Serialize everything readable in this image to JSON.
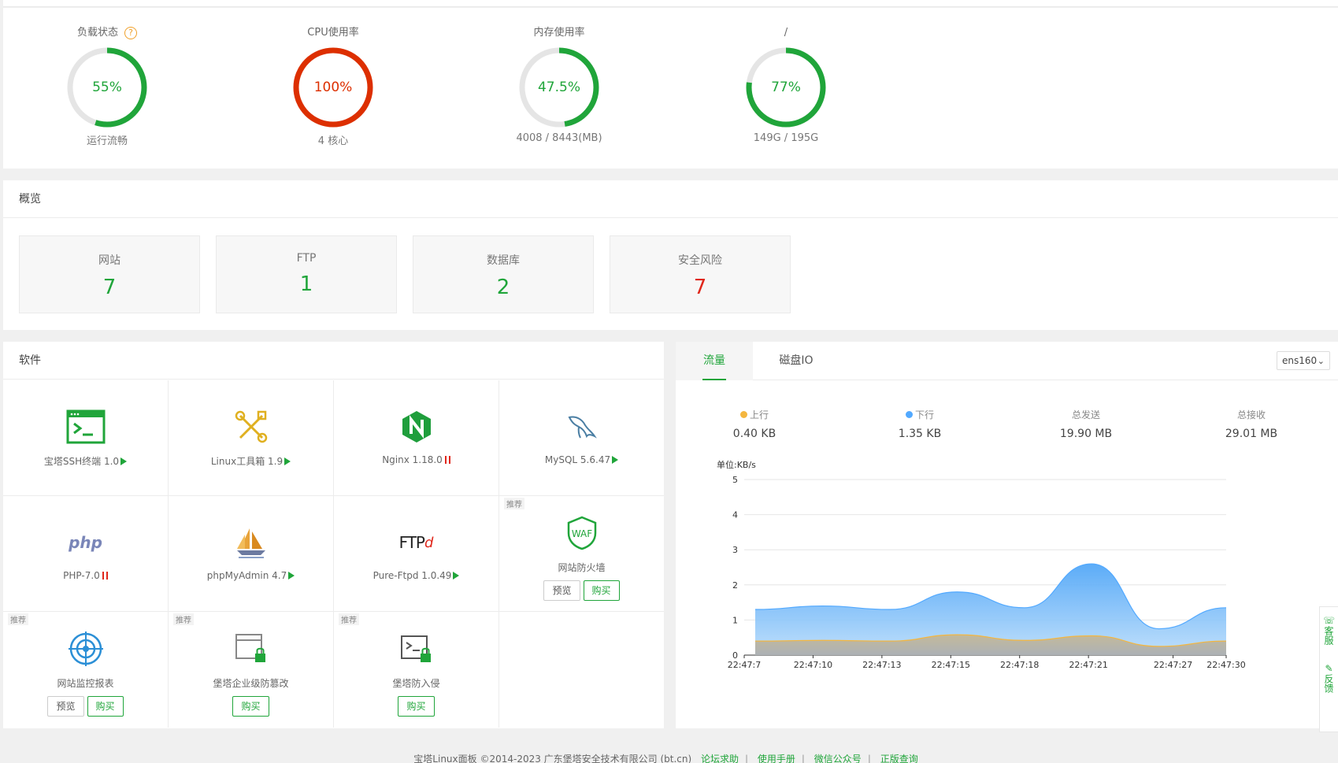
{
  "status": {
    "gauges": [
      {
        "title": "负载状态",
        "percent": 55,
        "value_text": "55%",
        "sub": "运行流畅",
        "color": "#20a53a"
      },
      {
        "title": "CPU使用率",
        "percent": 100,
        "value_text": "100%",
        "sub": "4 核心",
        "color": "#dd2f00"
      },
      {
        "title": "内存使用率",
        "percent": 47.5,
        "value_text": "47.5%",
        "sub": "4008 / 8443(MB)",
        "color": "#20a53a"
      },
      {
        "title": "/",
        "percent": 77,
        "value_text": "77%",
        "sub": "149G / 195G",
        "color": "#20a53a"
      }
    ],
    "help_symbol": "?"
  },
  "overview": {
    "title": "概览",
    "cards": [
      {
        "label": "网站",
        "value": "7"
      },
      {
        "label": "FTP",
        "value": "1"
      },
      {
        "label": "数据库",
        "value": "2"
      },
      {
        "label": "安全风险",
        "value": "7"
      }
    ]
  },
  "software": {
    "title": "软件",
    "recommend_tag": "推荐",
    "preview_label": "预览",
    "buy_label": "购买",
    "items": [
      {
        "name": "宝塔SSH终端 1.0",
        "icon": "terminal-icon",
        "status": "running"
      },
      {
        "name": "Linux工具箱 1.9",
        "icon": "toolbox-icon",
        "status": "running"
      },
      {
        "name": "Nginx 1.18.0",
        "icon": "nginx-icon",
        "status": "stopped"
      },
      {
        "name": "MySQL 5.6.47",
        "icon": "mysql-dolphin-icon",
        "status": "running"
      },
      {
        "name": "PHP-7.0",
        "icon": "php-icon",
        "status": "stopped",
        "icon_text": "php"
      },
      {
        "name": "phpMyAdmin 4.7",
        "icon": "sailboat-icon",
        "status": "running"
      },
      {
        "name": "Pure-Ftpd 1.0.49",
        "icon": "ftp-icon",
        "status": "running",
        "icon_text": "FTP"
      },
      {
        "name": "网站防火墙",
        "icon": "waf-shield-icon",
        "icon_text": "WAF"
      },
      {
        "name": "网站监控报表",
        "icon": "monitor-target-icon"
      },
      {
        "name": "堡塔企业级防篡改",
        "icon": "tamper-lock-icon"
      },
      {
        "name": "堡塔防入侵",
        "icon": "intrusion-terminal-lock-icon"
      }
    ]
  },
  "traffic": {
    "tabs": [
      "流量",
      "磁盘IO"
    ],
    "interface": "ens160",
    "stats": [
      {
        "label": "上行",
        "value": "0.40 KB",
        "dot": "#f4b63f"
      },
      {
        "label": "下行",
        "value": "1.35 KB",
        "dot": "#52a9ff"
      },
      {
        "label": "总发送",
        "value": "19.90 MB"
      },
      {
        "label": "总接收",
        "value": "29.01 MB"
      }
    ]
  },
  "chart_data": {
    "type": "area",
    "ylabel": "单位:KB/s",
    "ylim": [
      0,
      5
    ],
    "yticks": [
      "0",
      "1",
      "2",
      "3",
      "4",
      "5"
    ],
    "x": [
      "22:47:7",
      "22:47:10",
      "22:47:13",
      "22:47:15",
      "22:47:18",
      "22:47:21",
      "22:47:27",
      "22:47:30"
    ],
    "series": [
      {
        "name": "下行",
        "color": "#52a9ff",
        "values": [
          1.3,
          1.4,
          1.3,
          1.8,
          1.35,
          2.6,
          0.75,
          1.35
        ]
      },
      {
        "name": "上行",
        "color": "#f4b63f",
        "values": [
          0.4,
          0.42,
          0.4,
          0.58,
          0.42,
          0.55,
          0.25,
          0.4
        ]
      }
    ]
  },
  "side_float": [
    "客服",
    "反馈"
  ],
  "footer": {
    "copyright": "宝塔Linux面板 ©2014-2023 广东堡塔安全技术有限公司 (bt.cn)",
    "links": [
      "论坛求助",
      "使用手册",
      "微信公众号",
      "正版查询"
    ]
  }
}
